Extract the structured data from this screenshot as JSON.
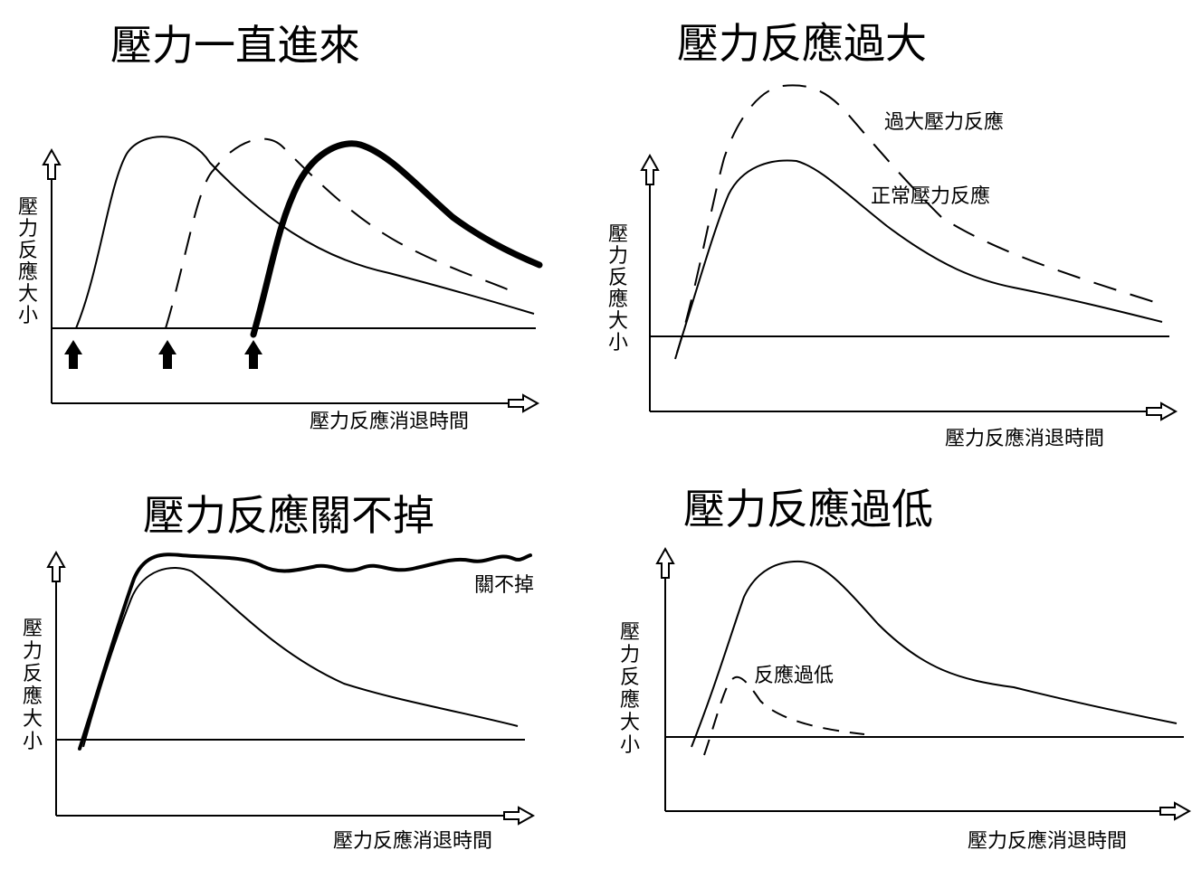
{
  "panels": {
    "tl": {
      "title": "壓力一直進來",
      "y_label": [
        "壓",
        "力",
        "反",
        "應",
        "大",
        "小"
      ],
      "x_label": "壓力反應消退時間"
    },
    "tr": {
      "title": "壓力反應過大",
      "y_label": [
        "壓",
        "力",
        "反",
        "應",
        "大",
        "小"
      ],
      "x_label": "壓力反應消退時間",
      "annot_excess": "過大壓力反應",
      "annot_normal": "正常壓力反應"
    },
    "bl": {
      "title": "壓力反應關不掉",
      "y_label": [
        "壓",
        "力",
        "反",
        "應",
        "大",
        "小"
      ],
      "x_label": "壓力反應消退時間",
      "annot_stuck": "關不掉"
    },
    "br": {
      "title": "壓力反應過低",
      "y_label": [
        "壓",
        "力",
        "反",
        "應",
        "大",
        "小"
      ],
      "x_label": "壓力反應消退時間",
      "annot_low": "反應過低"
    }
  },
  "colors": {
    "ink": "#000000",
    "background": "#ffffff"
  }
}
